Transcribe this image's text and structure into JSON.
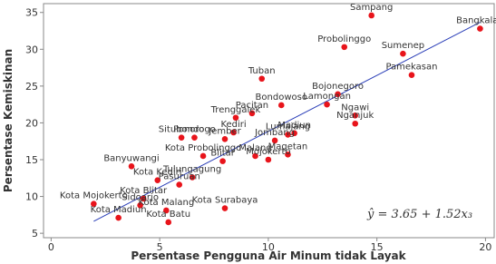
{
  "chart_data": {
    "type": "scatter",
    "xlabel": "Persentase Pengguna Air Minum tidak Layak",
    "ylabel": "Persentase Kemiskinan",
    "point_color": "#e8141b",
    "line_color": "#2b3fb8",
    "xlim": [
      -0.35,
      20.4
    ],
    "ylim": [
      4.4,
      36.2
    ],
    "xticks": [
      0,
      5,
      10,
      15,
      20
    ],
    "yticks": [
      5,
      10,
      15,
      20,
      25,
      30,
      35
    ],
    "point_labels": [
      "Sampang",
      "Bangkalan",
      "Probolinggo",
      "Sumenep",
      "Pamekasan",
      "Tuban",
      "Bojonegoro",
      "Lamongan",
      "Bondowoso",
      "Pacitan",
      "Trenggalek",
      "Ngawi",
      "Nganjuk",
      "Kediri",
      "Situbondo",
      "Ponorogo",
      "Jember",
      "Lumajang",
      "Madiun",
      "Jombang",
      "Magetan",
      "Malang",
      "Mojokerto",
      "Blitar",
      "Kota Probolinggo",
      "Banyuwangi",
      "Tulungagung",
      "Kota Kediri",
      "Pasuruan",
      "Kota Surabaya",
      "Kota Mojokerto",
      "Kota Blitar",
      "Sidoarjo",
      "Kota Malang",
      "Kota Madiun",
      "Kota Batu"
    ],
    "x": [
      14.75,
      19.75,
      13.5,
      16.2,
      16.6,
      9.7,
      13.2,
      12.7,
      10.6,
      9.25,
      8.5,
      14.0,
      14.0,
      8.4,
      6.0,
      6.6,
      8.0,
      10.9,
      11.2,
      10.3,
      10.9,
      9.4,
      10.0,
      7.9,
      7.0,
      3.7,
      6.5,
      4.9,
      5.9,
      8.0,
      1.96,
      4.25,
      4.1,
      5.3,
      3.1,
      5.4
    ],
    "values": [
      34.6,
      32.8,
      30.3,
      29.4,
      26.5,
      26.0,
      23.9,
      22.5,
      22.4,
      21.3,
      20.7,
      21.0,
      19.9,
      18.7,
      18.0,
      18.0,
      17.8,
      18.4,
      18.6,
      17.6,
      15.7,
      15.5,
      15.0,
      14.8,
      15.5,
      14.1,
      12.6,
      12.2,
      11.6,
      8.4,
      9.0,
      9.7,
      8.8,
      8.1,
      7.1,
      6.5
    ],
    "regression": {
      "equation": "ŷ = 3.65 + 1.52x₃",
      "intercept": 3.65,
      "slope": 1.52
    }
  }
}
